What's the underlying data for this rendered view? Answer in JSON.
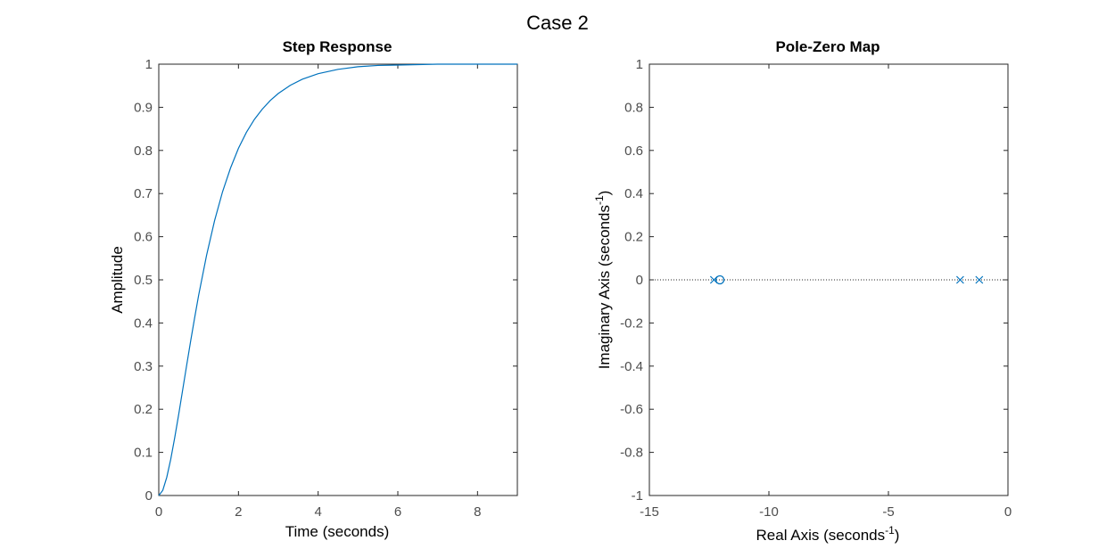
{
  "figure": {
    "suptitle": "Case 2"
  },
  "colors": {
    "line": "#0072bd",
    "axis": "#262626",
    "tick_text": "#4d4d4d",
    "dotted": "#262626"
  },
  "chart_data": [
    {
      "type": "line",
      "title": "Step Response",
      "xlabel": "Time (seconds)",
      "ylabel": "Amplitude",
      "xlim": [
        0,
        9
      ],
      "ylim": [
        0,
        1
      ],
      "xticks": [
        0,
        2,
        4,
        6,
        8
      ],
      "yticks": [
        0,
        0.1,
        0.2,
        0.3,
        0.4,
        0.5,
        0.6,
        0.7,
        0.8,
        0.9,
        1
      ],
      "grid": false,
      "reference_line": {
        "y": 1,
        "style": "dotted"
      },
      "series": [
        {
          "x": [
            0,
            0.1,
            0.2,
            0.3,
            0.4,
            0.5,
            0.6,
            0.7,
            0.8,
            0.9,
            1.0,
            1.2,
            1.4,
            1.6,
            1.8,
            2.0,
            2.2,
            2.4,
            2.6,
            2.8,
            3.0,
            3.3,
            3.6,
            4.0,
            4.5,
            5.0,
            5.5,
            6.0,
            6.5,
            7.0,
            8.0,
            9.0
          ],
          "y": [
            0,
            0.012,
            0.042,
            0.084,
            0.134,
            0.188,
            0.245,
            0.302,
            0.358,
            0.412,
            0.464,
            0.557,
            0.637,
            0.704,
            0.759,
            0.805,
            0.842,
            0.872,
            0.896,
            0.916,
            0.932,
            0.951,
            0.965,
            0.978,
            0.988,
            0.994,
            0.997,
            0.998,
            0.999,
            1.0,
            1.0,
            1.0
          ]
        }
      ]
    },
    {
      "type": "scatter",
      "title": "Pole-Zero Map",
      "xlabel_main": "Real Axis (seconds",
      "xlabel_sup": "-1",
      "xlabel_close": ")",
      "ylabel_main": "Imaginary Axis (seconds",
      "ylabel_sup": "-1",
      "ylabel_close": ")",
      "xlim": [
        -15,
        0
      ],
      "ylim": [
        -1,
        1
      ],
      "xticks": [
        -15,
        -10,
        -5,
        0
      ],
      "yticks": [
        -1,
        -0.8,
        -0.6,
        -0.4,
        -0.2,
        0,
        0.2,
        0.4,
        0.6,
        0.8,
        1
      ],
      "grid": false,
      "reference_line": {
        "y": 0,
        "style": "dotted"
      },
      "poles": [
        {
          "x": -12.3,
          "y": 0
        },
        {
          "x": -2.0,
          "y": 0
        },
        {
          "x": -1.2,
          "y": 0
        }
      ],
      "zeros": [
        {
          "x": -12.05,
          "y": 0
        }
      ]
    }
  ]
}
